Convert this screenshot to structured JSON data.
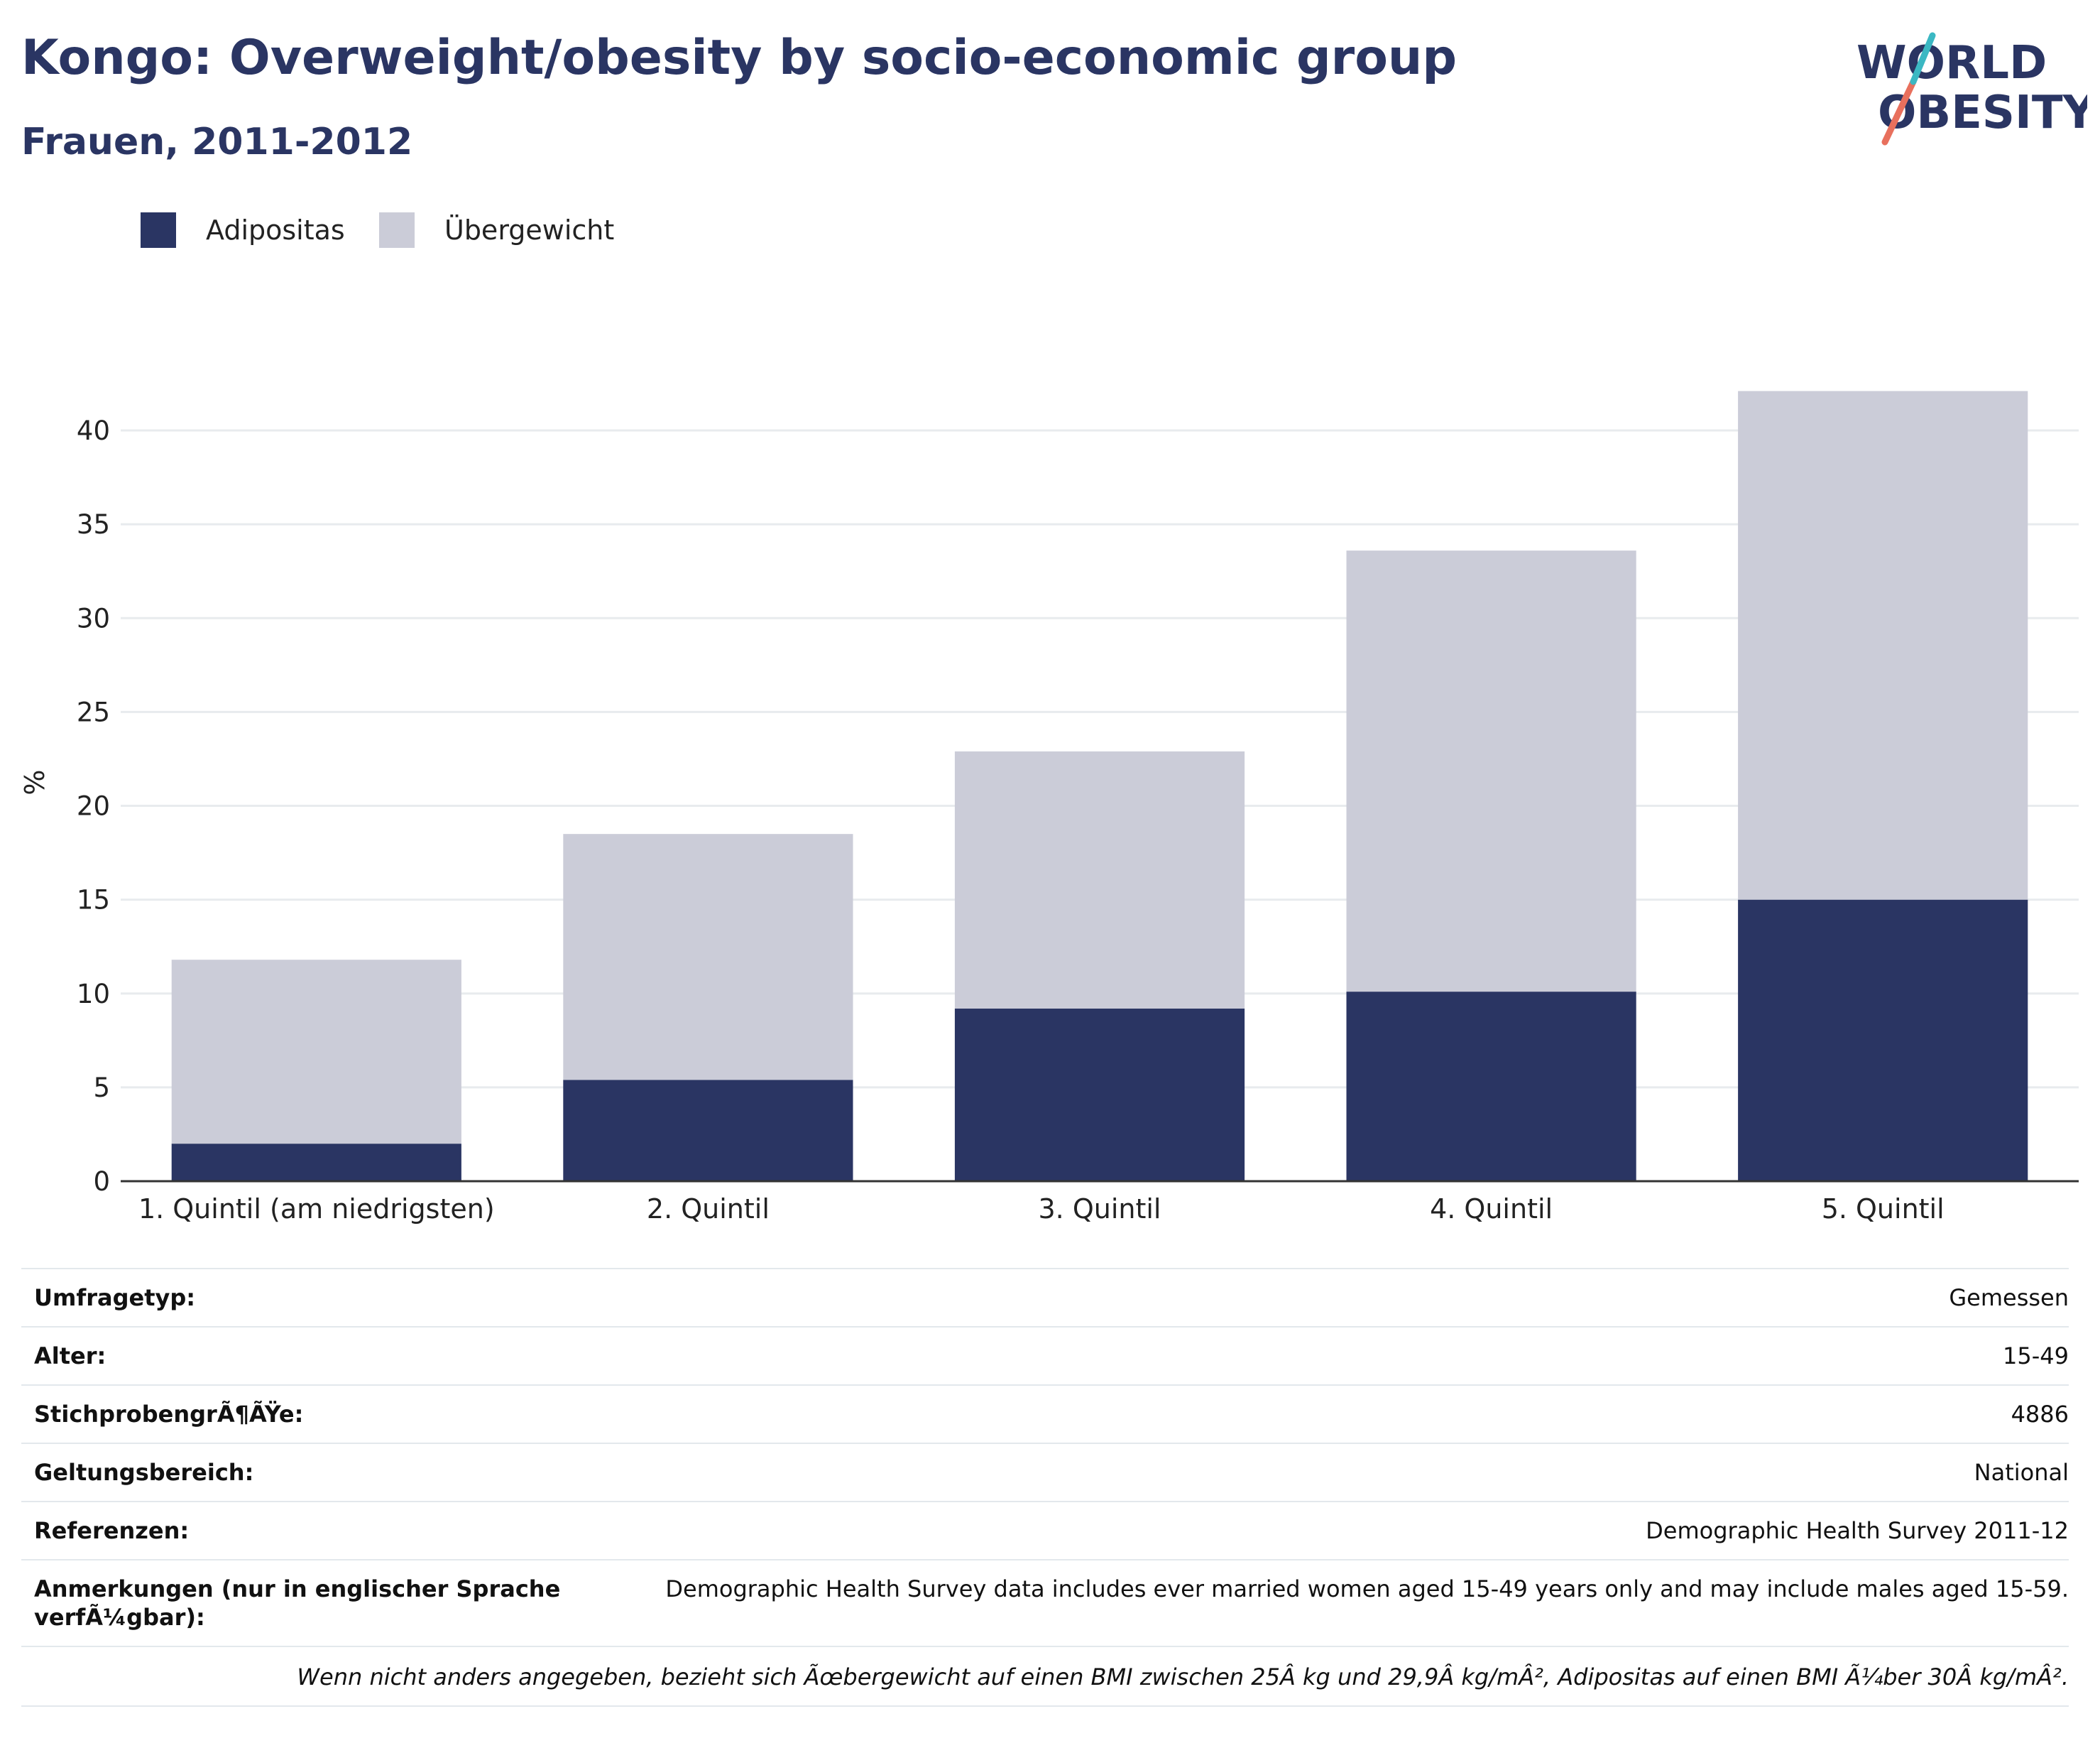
{
  "title": "Kongo: Overweight/obesity by socio-economic group",
  "subtitle": "Frauen, 2011-2012",
  "logo": {
    "line1": "WORLD",
    "line2": "OBESITY"
  },
  "colors": {
    "title": "#2a3563",
    "obesity": "#2a3563",
    "overweight": "#cbccd8",
    "axis": "#333333",
    "grid": "#e8ebee"
  },
  "chart_data": {
    "type": "bar",
    "stacked": true,
    "categories": [
      "1. Quintil (am niedrigsten)",
      "2. Quintil",
      "3. Quintil",
      "4. Quintil",
      "5. Quintil"
    ],
    "series": [
      {
        "name": "Adipositas",
        "values": [
          2.0,
          5.4,
          9.2,
          10.1,
          15.0
        ]
      },
      {
        "name": "Übergewicht",
        "values": [
          9.8,
          13.1,
          13.7,
          23.5,
          27.1
        ]
      }
    ],
    "ylabel": "%",
    "xlabel": "",
    "ylim": [
      0,
      42.5
    ],
    "yticks": [
      0,
      5,
      10,
      15,
      20,
      25,
      30,
      35,
      40
    ],
    "grid": true,
    "legend_position": "top-left"
  },
  "footer": {
    "rows": [
      {
        "label": "Umfragetyp:",
        "value": "Gemessen"
      },
      {
        "label": "Alter:",
        "value": "15-49"
      },
      {
        "label": "StichprobengrÃ¶ÃŸe:",
        "value": "4886"
      },
      {
        "label": "Geltungsbereich:",
        "value": "National"
      },
      {
        "label": "Referenzen:",
        "value": "Demographic Health Survey 2011-12"
      },
      {
        "label": "Anmerkungen (nur in englischer Sprache verfÃ¼gbar):",
        "value": "Demographic Health Survey data includes ever married women aged 15-49 years only and may include males aged 15-59."
      }
    ],
    "note": "Wenn nicht anders angegeben, bezieht sich Ãœbergewicht auf einen BMI zwischen 25Â kg und 29,9Â kg/mÂ², Adipositas auf einen BMI Ã¼ber 30Â kg/mÂ²."
  }
}
